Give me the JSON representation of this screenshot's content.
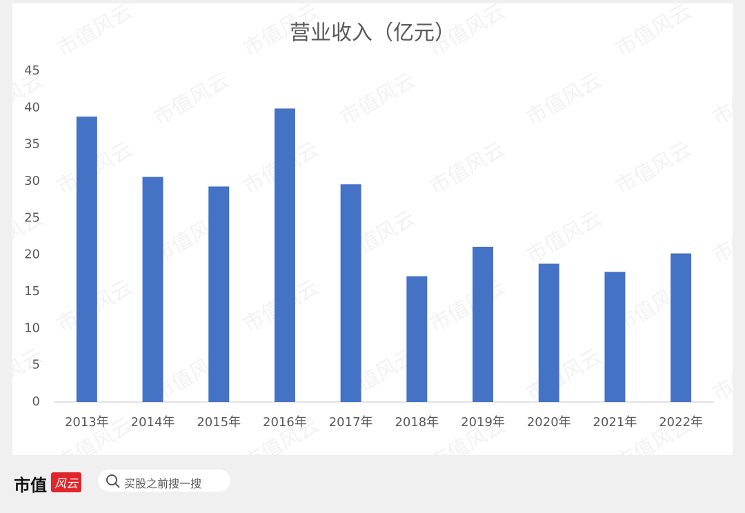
{
  "chart_data": {
    "type": "bar",
    "title": "营业收入（亿元）",
    "categories": [
      "2013年",
      "2014年",
      "2015年",
      "2016年",
      "2017年",
      "2018年",
      "2019年",
      "2020年",
      "2021年",
      "2022年"
    ],
    "values": [
      38.8,
      30.6,
      29.3,
      39.9,
      29.6,
      17.1,
      21.1,
      18.8,
      17.7,
      20.2
    ],
    "color": "#4472c4",
    "ylim": [
      0,
      45
    ],
    "yticks": [
      0,
      5,
      10,
      15,
      20,
      25,
      30,
      35,
      40,
      45
    ],
    "grid": false,
    "watermark": "市值风云"
  },
  "footer": {
    "logo_text": "市值",
    "logo_badge": "风云",
    "search_placeholder": "买股之前搜一搜"
  }
}
